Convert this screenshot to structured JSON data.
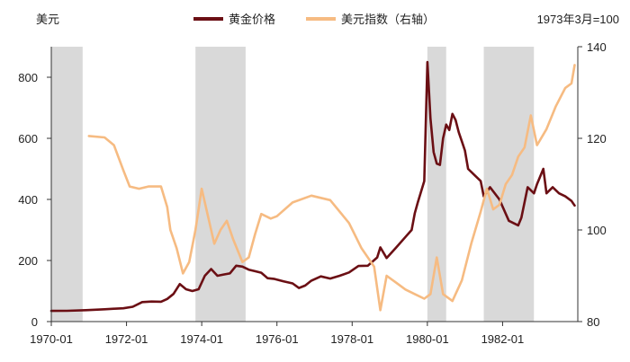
{
  "chart_data": {
    "type": "line",
    "left_axis_unit": "美元",
    "right_axis_note": "1973年3月=100",
    "legend": {
      "placement": "top-center",
      "items": [
        "黄金价格",
        "美元指数（右轴）"
      ]
    },
    "x_ticks": [
      "1970-01",
      "1972-01",
      "1974-01",
      "1976-01",
      "1978-01",
      "1980-01",
      "1982-01"
    ],
    "y_left": {
      "min": 0,
      "max": 900,
      "ticks": [
        0,
        200,
        400,
        600,
        800
      ]
    },
    "y_right": {
      "min": 80,
      "max": 140,
      "ticks": [
        80,
        100,
        120,
        140
      ]
    },
    "x_range": [
      "1970-01",
      "1983-12"
    ],
    "shaded_periods": [
      [
        "1970-01",
        "1970-11"
      ],
      [
        "1973-11",
        "1975-03"
      ],
      [
        "1980-01",
        "1980-07"
      ],
      [
        "1981-07",
        "1982-11"
      ]
    ],
    "series": [
      {
        "name": "黄金价格",
        "axis": "left",
        "color": "#6b0f14",
        "points": [
          [
            "1970-01",
            35
          ],
          [
            "1970-06",
            35.4
          ],
          [
            "1970-12",
            37.4
          ],
          [
            "1971-03",
            38.9
          ],
          [
            "1971-06",
            40.2
          ],
          [
            "1971-09",
            42.1
          ],
          [
            "1971-12",
            43.6
          ],
          [
            "1972-03",
            48.4
          ],
          [
            "1972-06",
            63.9
          ],
          [
            "1972-09",
            65.5
          ],
          [
            "1972-12",
            64.9
          ],
          [
            "1973-02",
            74
          ],
          [
            "1973-04",
            90.5
          ],
          [
            "1973-06",
            123
          ],
          [
            "1973-08",
            106
          ],
          [
            "1973-10",
            100
          ],
          [
            "1973-12",
            106
          ],
          [
            "1974-02",
            150
          ],
          [
            "1974-04",
            172
          ],
          [
            "1974-06",
            150
          ],
          [
            "1974-08",
            154
          ],
          [
            "1974-10",
            158
          ],
          [
            "1974-12",
            183
          ],
          [
            "1975-02",
            180
          ],
          [
            "1975-04",
            170
          ],
          [
            "1975-06",
            165
          ],
          [
            "1975-08",
            160
          ],
          [
            "1975-10",
            142
          ],
          [
            "1975-12",
            140
          ],
          [
            "1976-03",
            132
          ],
          [
            "1976-06",
            125
          ],
          [
            "1976-08",
            110
          ],
          [
            "1976-10",
            118
          ],
          [
            "1976-12",
            134
          ],
          [
            "1977-03",
            148
          ],
          [
            "1977-06",
            141
          ],
          [
            "1977-09",
            150
          ],
          [
            "1977-12",
            161
          ],
          [
            "1978-03",
            182
          ],
          [
            "1978-06",
            183
          ],
          [
            "1978-09",
            210
          ],
          [
            "1978-10",
            243
          ],
          [
            "1978-12",
            208
          ],
          [
            "1979-03",
            242
          ],
          [
            "1979-06",
            277
          ],
          [
            "1979-08",
            300
          ],
          [
            "1979-09",
            355
          ],
          [
            "1979-10",
            392
          ],
          [
            "1979-12",
            460
          ],
          [
            "1980-01",
            850
          ],
          [
            "1980-02",
            665
          ],
          [
            "1980-03",
            555
          ],
          [
            "1980-04",
            517
          ],
          [
            "1980-05",
            513
          ],
          [
            "1980-06",
            600
          ],
          [
            "1980-07",
            645
          ],
          [
            "1980-08",
            627
          ],
          [
            "1980-09",
            680
          ],
          [
            "1980-10",
            660
          ],
          [
            "1980-11",
            620
          ],
          [
            "1980-12",
            590
          ],
          [
            "1981-01",
            560
          ],
          [
            "1981-02",
            500
          ],
          [
            "1981-04",
            480
          ],
          [
            "1981-06",
            460
          ],
          [
            "1981-07",
            410
          ],
          [
            "1981-09",
            440
          ],
          [
            "1981-12",
            400
          ],
          [
            "1982-03",
            330
          ],
          [
            "1982-06",
            315
          ],
          [
            "1982-07",
            340
          ],
          [
            "1982-09",
            440
          ],
          [
            "1982-11",
            420
          ],
          [
            "1982-12",
            450
          ],
          [
            "1983-02",
            500
          ],
          [
            "1983-03",
            420
          ],
          [
            "1983-05",
            440
          ],
          [
            "1983-07",
            420
          ],
          [
            "1983-09",
            410
          ],
          [
            "1983-11",
            395
          ],
          [
            "1983-12",
            380
          ]
        ]
      },
      {
        "name": "美元指数（右轴）",
        "axis": "right",
        "color": "#f6bb82",
        "points": [
          [
            "1971-01",
            120.5
          ],
          [
            "1971-06",
            120.2
          ],
          [
            "1971-09",
            118.5
          ],
          [
            "1971-12",
            113
          ],
          [
            "1972-02",
            109.5
          ],
          [
            "1972-05",
            109
          ],
          [
            "1972-08",
            109.5
          ],
          [
            "1972-12",
            109.5
          ],
          [
            "1973-02",
            105
          ],
          [
            "1973-03",
            100
          ],
          [
            "1973-05",
            96
          ],
          [
            "1973-07",
            90.5
          ],
          [
            "1973-09",
            93
          ],
          [
            "1973-11",
            100
          ],
          [
            "1974-01",
            109
          ],
          [
            "1974-03",
            103
          ],
          [
            "1974-05",
            97
          ],
          [
            "1974-07",
            100
          ],
          [
            "1974-09",
            102
          ],
          [
            "1974-11",
            98
          ],
          [
            "1975-02",
            93
          ],
          [
            "1975-04",
            94
          ],
          [
            "1975-06",
            99
          ],
          [
            "1975-08",
            103.5
          ],
          [
            "1975-11",
            102.5
          ],
          [
            "1976-01",
            103
          ],
          [
            "1976-06",
            106
          ],
          [
            "1976-12",
            107.5
          ],
          [
            "1977-06",
            106.5
          ],
          [
            "1977-12",
            101.5
          ],
          [
            "1978-04",
            96
          ],
          [
            "1978-08",
            92
          ],
          [
            "1978-10",
            82.5
          ],
          [
            "1978-12",
            90
          ],
          [
            "1979-03",
            88.5
          ],
          [
            "1979-06",
            87
          ],
          [
            "1979-09",
            86
          ],
          [
            "1979-12",
            85
          ],
          [
            "1980-02",
            86
          ],
          [
            "1980-04",
            94
          ],
          [
            "1980-06",
            86
          ],
          [
            "1980-09",
            84.5
          ],
          [
            "1980-12",
            89
          ],
          [
            "1981-03",
            97
          ],
          [
            "1981-06",
            104
          ],
          [
            "1981-08",
            109
          ],
          [
            "1981-10",
            104.5
          ],
          [
            "1981-12",
            105.5
          ],
          [
            "1982-02",
            110
          ],
          [
            "1982-04",
            112
          ],
          [
            "1982-06",
            116
          ],
          [
            "1982-08",
            118
          ],
          [
            "1982-10",
            125
          ],
          [
            "1982-12",
            118.5
          ],
          [
            "1983-03",
            122
          ],
          [
            "1983-06",
            127
          ],
          [
            "1983-09",
            131
          ],
          [
            "1983-11",
            132
          ],
          [
            "1983-12",
            136
          ]
        ]
      }
    ]
  }
}
